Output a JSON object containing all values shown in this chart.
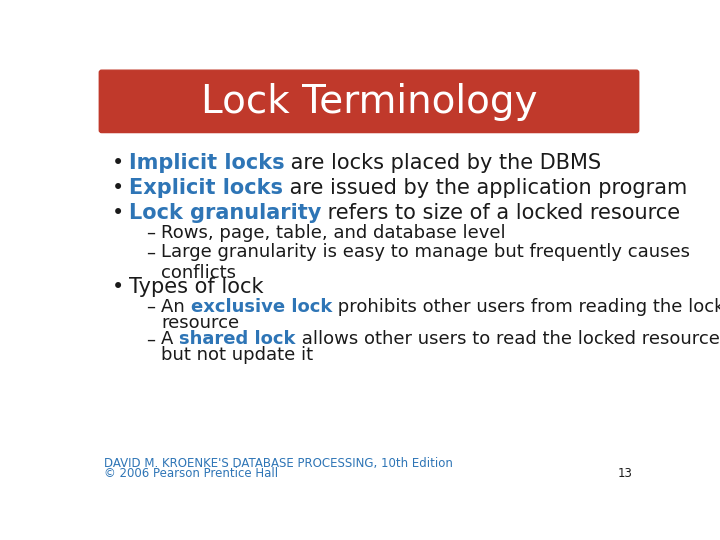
{
  "title": "Lock Terminology",
  "title_bg_color": "#C0392B",
  "title_text_color": "#FFFFFF",
  "bg_color": "#FFFFFF",
  "blue_color": "#2E75B6",
  "black_color": "#1A1A1A",
  "footer_color": "#2E75B6",
  "font_size_title": 28,
  "font_size_body": 15,
  "font_size_sub": 13,
  "font_size_footer": 8.5,
  "footer_line1": "DAVID M. KROENKE'S DATABASE PROCESSING, 10th Edition",
  "footer_line2": "© 2006 Pearson Prentice Hall",
  "page_number": "13"
}
